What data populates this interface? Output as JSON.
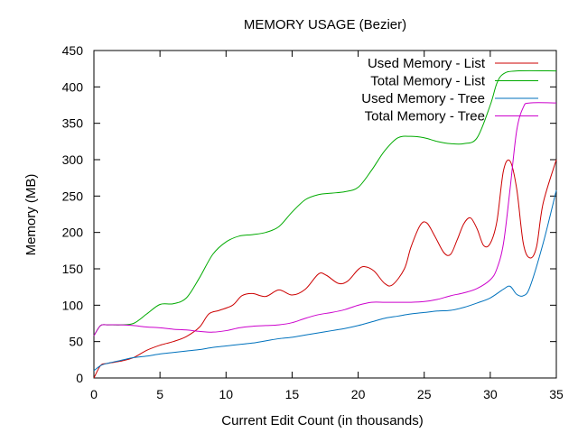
{
  "chart_data": {
    "type": "line",
    "title": "MEMORY USAGE (Bezier)",
    "xlabel": "Current Edit Count (in thousands)",
    "ylabel": "Memory (MB)",
    "xlim": [
      0,
      35
    ],
    "ylim": [
      0,
      450
    ],
    "xticks": [
      0,
      5,
      10,
      15,
      20,
      25,
      30,
      35
    ],
    "yticks": [
      0,
      50,
      100,
      150,
      200,
      250,
      300,
      350,
      400,
      450
    ],
    "grid": false,
    "legend_position": "top-right",
    "series": [
      {
        "name": "Used Memory - List",
        "color": "#cc0000",
        "points": [
          [
            0,
            0
          ],
          [
            0.5,
            17
          ],
          [
            1,
            20
          ],
          [
            2,
            23
          ],
          [
            3,
            28
          ],
          [
            4,
            38
          ],
          [
            5,
            45
          ],
          [
            6,
            50
          ],
          [
            7,
            57
          ],
          [
            8,
            70
          ],
          [
            8.7,
            88
          ],
          [
            9.5,
            93
          ],
          [
            10.5,
            100
          ],
          [
            11.2,
            113
          ],
          [
            12,
            116
          ],
          [
            13,
            112
          ],
          [
            14,
            121
          ],
          [
            15,
            114
          ],
          [
            16,
            122
          ],
          [
            17,
            143
          ],
          [
            17.6,
            141
          ],
          [
            18.5,
            130
          ],
          [
            19.2,
            133
          ],
          [
            20,
            149
          ],
          [
            20.5,
            153
          ],
          [
            21.2,
            147
          ],
          [
            22,
            130
          ],
          [
            22.6,
            128
          ],
          [
            23.5,
            150
          ],
          [
            24,
            180
          ],
          [
            24.7,
            210
          ],
          [
            25.2,
            213
          ],
          [
            25.8,
            195
          ],
          [
            26.5,
            172
          ],
          [
            27,
            170
          ],
          [
            27.5,
            190
          ],
          [
            28,
            212
          ],
          [
            28.5,
            220
          ],
          [
            29,
            205
          ],
          [
            29.5,
            182
          ],
          [
            30,
            185
          ],
          [
            30.5,
            215
          ],
          [
            31,
            285
          ],
          [
            31.5,
            298
          ],
          [
            32,
            260
          ],
          [
            32.5,
            185
          ],
          [
            33,
            165
          ],
          [
            33.5,
            180
          ],
          [
            34,
            240
          ],
          [
            35,
            300
          ]
        ]
      },
      {
        "name": "Total Memory - List",
        "color": "#00aa00",
        "points": [
          [
            0,
            58
          ],
          [
            0.5,
            72
          ],
          [
            1,
            73
          ],
          [
            2,
            73
          ],
          [
            3,
            75
          ],
          [
            4,
            88
          ],
          [
            5,
            101
          ],
          [
            6,
            102
          ],
          [
            7,
            110
          ],
          [
            8,
            138
          ],
          [
            9,
            170
          ],
          [
            10,
            187
          ],
          [
            11,
            195
          ],
          [
            12,
            197
          ],
          [
            13,
            200
          ],
          [
            14,
            208
          ],
          [
            15,
            228
          ],
          [
            16,
            245
          ],
          [
            17,
            252
          ],
          [
            18,
            254
          ],
          [
            19,
            256
          ],
          [
            20,
            262
          ],
          [
            21,
            285
          ],
          [
            22,
            312
          ],
          [
            23,
            330
          ],
          [
            24,
            332
          ],
          [
            25,
            330
          ],
          [
            26,
            325
          ],
          [
            27,
            322
          ],
          [
            28,
            322
          ],
          [
            29,
            330
          ],
          [
            30,
            375
          ],
          [
            30.5,
            405
          ],
          [
            31,
            418
          ],
          [
            32,
            422
          ],
          [
            35,
            422
          ]
        ]
      },
      {
        "name": "Used Memory - Tree",
        "color": "#0072bd",
        "points": [
          [
            0,
            10
          ],
          [
            0.5,
            17
          ],
          [
            1,
            20
          ],
          [
            2,
            24
          ],
          [
            3,
            28
          ],
          [
            4,
            30
          ],
          [
            5,
            33
          ],
          [
            6,
            35
          ],
          [
            7,
            37
          ],
          [
            8,
            39
          ],
          [
            9,
            42
          ],
          [
            10,
            44
          ],
          [
            11,
            46
          ],
          [
            12,
            48
          ],
          [
            13,
            51
          ],
          [
            14,
            54
          ],
          [
            15,
            56
          ],
          [
            16,
            59
          ],
          [
            17,
            62
          ],
          [
            18,
            65
          ],
          [
            19,
            68
          ],
          [
            20,
            72
          ],
          [
            21,
            77
          ],
          [
            22,
            82
          ],
          [
            23,
            85
          ],
          [
            24,
            88
          ],
          [
            25,
            90
          ],
          [
            26,
            92
          ],
          [
            27,
            93
          ],
          [
            28,
            97
          ],
          [
            29,
            103
          ],
          [
            30,
            110
          ],
          [
            31,
            122
          ],
          [
            31.5,
            126
          ],
          [
            32,
            115
          ],
          [
            32.5,
            113
          ],
          [
            33,
            125
          ],
          [
            34,
            185
          ],
          [
            35,
            258
          ]
        ]
      },
      {
        "name": "Total Memory - Tree",
        "color": "#cc00cc",
        "points": [
          [
            0,
            58
          ],
          [
            0.5,
            72
          ],
          [
            1,
            73
          ],
          [
            2,
            73
          ],
          [
            3,
            72
          ],
          [
            4,
            70
          ],
          [
            5,
            69
          ],
          [
            6,
            67
          ],
          [
            7,
            66
          ],
          [
            8,
            64
          ],
          [
            9,
            63
          ],
          [
            10,
            65
          ],
          [
            11,
            69
          ],
          [
            12,
            71
          ],
          [
            13,
            72
          ],
          [
            14,
            73
          ],
          [
            15,
            76
          ],
          [
            16,
            82
          ],
          [
            17,
            87
          ],
          [
            18,
            90
          ],
          [
            19,
            94
          ],
          [
            20,
            100
          ],
          [
            21,
            104
          ],
          [
            22,
            104
          ],
          [
            23,
            104
          ],
          [
            24,
            104
          ],
          [
            25,
            105
          ],
          [
            26,
            108
          ],
          [
            27,
            113
          ],
          [
            28,
            117
          ],
          [
            29,
            123
          ],
          [
            30,
            135
          ],
          [
            30.5,
            150
          ],
          [
            31,
            185
          ],
          [
            31.5,
            260
          ],
          [
            32,
            340
          ],
          [
            32.5,
            372
          ],
          [
            33,
            378
          ],
          [
            35,
            378
          ]
        ]
      }
    ]
  }
}
